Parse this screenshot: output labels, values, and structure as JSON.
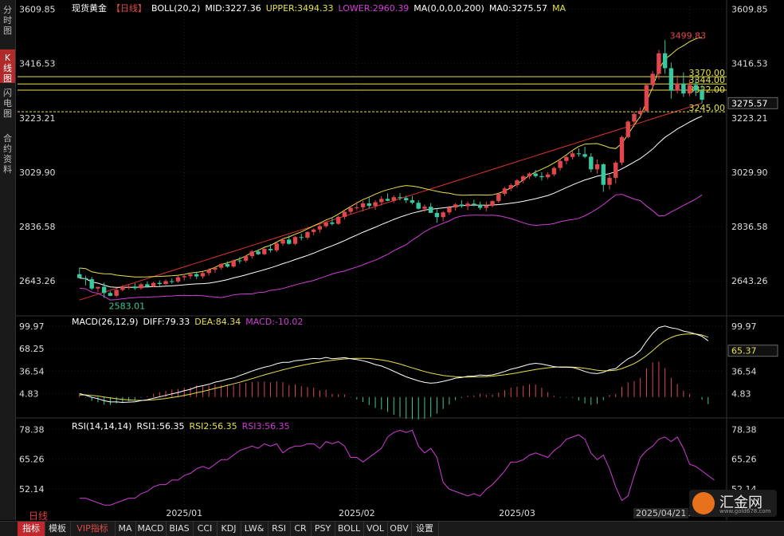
{
  "sidebar": {
    "tabs": [
      {
        "label": "分时图",
        "active": false
      },
      {
        "label": "K线图",
        "active": true
      },
      {
        "label": "闪电图",
        "active": false
      },
      {
        "label": "合约资料",
        "active": false
      }
    ]
  },
  "main_legend": {
    "symbol": "现货黄金",
    "period": "【日线】",
    "boll": "BOLL(20,2)",
    "mid": "MID:3227.36",
    "upper": "UPPER:3494.33",
    "lower": "LOWER:2960.39",
    "ma_params": "MA(0,0,0,0,200)",
    "ma0": "MA0:3275.57",
    "ma_tag": "MA"
  },
  "macd_legend": {
    "params": "MACD(26,12,9)",
    "diff": "DIFF:79.33",
    "dea": "DEA:84.34",
    "macd": "MACD:-10.02"
  },
  "rsi_legend": {
    "params": "RSI(14,14,14)",
    "rsi1": "RSI1:56.35",
    "rsi2": "RSI2:56.35",
    "rsi3": "RSI3:56.35"
  },
  "annotations": {
    "high_label": "3499.83",
    "low_label": "2583.01",
    "price_tag": "3275.57",
    "macd_tag": "65.37"
  },
  "bottom": {
    "period_label": "日线",
    "date_badge": "2025/04/21",
    "brand_name": "汇金网",
    "brand_url": "www.gold678.com",
    "toolbar": [
      "指标",
      "模板",
      "VIP指标",
      "MA",
      "MACD",
      "BIAS",
      "CCI",
      "KDJ",
      "LW&",
      "RSI",
      "CR",
      "PSY",
      "BOLL",
      "VOL",
      "OBV",
      "设置"
    ],
    "toolbar_active": "指标"
  },
  "colors": {
    "up": "#e0474c",
    "down": "#39c8a0",
    "boll_upper": "#e8e24a",
    "boll_mid": "#ffffff",
    "boll_lower": "#d23cd8",
    "ma200": "#e0332d",
    "rsi": "#d23cd8",
    "grid": "#222222",
    "hline": "#e8e24a"
  },
  "chart_data": [
    {
      "type": "candlestick",
      "title": "现货黄金【日线】",
      "y_ticks": [
        "3609.85",
        "3416.53",
        "3223.21",
        "3029.90",
        "2836.58",
        "2643.26"
      ],
      "ylim": [
        2530,
        3620
      ],
      "x_ticks": [
        "2025/01",
        "2025/02",
        "2025/03",
        "2025/04"
      ],
      "x_tick_index": [
        17,
        45,
        71,
        99
      ],
      "horizontal_lines": [
        "3370.00",
        "3344.00",
        "3322.00",
        "3245.00"
      ],
      "horizontal_labels": [
        "3370.00",
        "3344.00",
        "3322.00",
        "3245.00"
      ],
      "extremes": {
        "high": 3499.83,
        "low": 2583.01
      },
      "candles": [
        [
          2667,
          2690,
          2662,
          2653
        ],
        [
          2653,
          2661,
          2627,
          2649
        ],
        [
          2649,
          2657,
          2611,
          2616
        ],
        [
          2616,
          2621,
          2604,
          2622
        ],
        [
          2622,
          2637,
          2583,
          2600
        ],
        [
          2600,
          2606,
          2589,
          2590
        ],
        [
          2590,
          2618,
          2585,
          2611
        ],
        [
          2611,
          2628,
          2606,
          2621
        ],
        [
          2621,
          2630,
          2613,
          2623
        ],
        [
          2623,
          2635,
          2611,
          2617
        ],
        [
          2617,
          2636,
          2612,
          2631
        ],
        [
          2631,
          2641,
          2619,
          2623
        ],
        [
          2623,
          2640,
          2620,
          2636
        ],
        [
          2636,
          2645,
          2625,
          2632
        ],
        [
          2632,
          2648,
          2628,
          2642
        ],
        [
          2642,
          2652,
          2633,
          2641
        ],
        [
          2641,
          2661,
          2636,
          2656
        ],
        [
          2656,
          2668,
          2645,
          2660
        ],
        [
          2660,
          2672,
          2650,
          2667
        ],
        [
          2667,
          2676,
          2650,
          2659
        ],
        [
          2659,
          2676,
          2652,
          2671
        ],
        [
          2671,
          2688,
          2662,
          2683
        ],
        [
          2683,
          2693,
          2672,
          2690
        ],
        [
          2690,
          2705,
          2683,
          2703
        ],
        [
          2703,
          2713,
          2690,
          2694
        ],
        [
          2694,
          2720,
          2690,
          2716
        ],
        [
          2716,
          2728,
          2705,
          2715
        ],
        [
          2715,
          2735,
          2709,
          2731
        ],
        [
          2731,
          2753,
          2722,
          2748
        ],
        [
          2748,
          2756,
          2735,
          2738
        ],
        [
          2738,
          2762,
          2735,
          2757
        ],
        [
          2757,
          2774,
          2744,
          2752
        ],
        [
          2752,
          2780,
          2745,
          2776
        ],
        [
          2776,
          2795,
          2768,
          2790
        ],
        [
          2790,
          2805,
          2772,
          2775
        ],
        [
          2775,
          2803,
          2770,
          2799
        ],
        [
          2799,
          2811,
          2787,
          2797
        ],
        [
          2797,
          2820,
          2790,
          2817
        ],
        [
          2817,
          2830,
          2805,
          2826
        ],
        [
          2826,
          2843,
          2815,
          2838
        ],
        [
          2838,
          2855,
          2832,
          2851
        ],
        [
          2851,
          2870,
          2840,
          2846
        ],
        [
          2846,
          2875,
          2843,
          2871
        ],
        [
          2871,
          2895,
          2862,
          2889
        ],
        [
          2889,
          2910,
          2880,
          2903
        ],
        [
          2903,
          2925,
          2895,
          2905
        ],
        [
          2905,
          2928,
          2891,
          2919
        ],
        [
          2919,
          2942,
          2902,
          2910
        ],
        [
          2910,
          2930,
          2896,
          2923
        ],
        [
          2923,
          2945,
          2911,
          2935
        ],
        [
          2935,
          2955,
          2927,
          2928
        ],
        [
          2928,
          2948,
          2920,
          2941
        ],
        [
          2941,
          2955,
          2930,
          2938
        ],
        [
          2938,
          2946,
          2920,
          2930
        ],
        [
          2930,
          2945,
          2915,
          2921
        ],
        [
          2921,
          2930,
          2897,
          2900
        ],
        [
          2900,
          2915,
          2888,
          2907
        ],
        [
          2907,
          2920,
          2895,
          2885
        ],
        [
          2885,
          2902,
          2850,
          2870
        ],
        [
          2870,
          2892,
          2855,
          2887
        ],
        [
          2887,
          2910,
          2878,
          2904
        ],
        [
          2904,
          2920,
          2893,
          2915
        ],
        [
          2915,
          2930,
          2903,
          2909
        ],
        [
          2909,
          2925,
          2895,
          2918
        ],
        [
          2918,
          2932,
          2908,
          2914
        ],
        [
          2914,
          2925,
          2896,
          2903
        ],
        [
          2903,
          2925,
          2890,
          2910
        ],
        [
          2910,
          2930,
          2905,
          2927
        ],
        [
          2927,
          2958,
          2920,
          2953
        ],
        [
          2953,
          2977,
          2945,
          2972
        ],
        [
          2972,
          2990,
          2963,
          2984
        ],
        [
          2984,
          3005,
          2975,
          3001
        ],
        [
          3001,
          3020,
          2990,
          3015
        ],
        [
          3015,
          3030,
          3005,
          3025
        ],
        [
          3025,
          3038,
          3010,
          3016
        ],
        [
          3016,
          3030,
          3000,
          3012
        ],
        [
          3012,
          3030,
          3005,
          3022
        ],
        [
          3022,
          3050,
          3015,
          3045
        ],
        [
          3045,
          3075,
          3035,
          3070
        ],
        [
          3070,
          3090,
          3058,
          3084
        ],
        [
          3084,
          3108,
          3075,
          3097
        ],
        [
          3097,
          3115,
          3085,
          3094
        ],
        [
          3094,
          3120,
          3080,
          3085
        ],
        [
          3085,
          3098,
          3030,
          3040
        ],
        [
          3040,
          3075,
          3025,
          3058
        ],
        [
          3058,
          3062,
          2960,
          2985
        ],
        [
          2985,
          3022,
          2968,
          3010
        ],
        [
          3010,
          3070,
          2990,
          3064
        ],
        [
          3064,
          3160,
          3055,
          3155
        ],
        [
          3155,
          3215,
          3150,
          3210
        ],
        [
          3210,
          3245,
          3192,
          3237
        ],
        [
          3237,
          3260,
          3222,
          3248
        ],
        [
          3248,
          3345,
          3245,
          3340
        ],
        [
          3340,
          3390,
          3320,
          3380
        ],
        [
          3380,
          3465,
          3360,
          3453
        ],
        [
          3453,
          3500,
          3380,
          3400
        ],
        [
          3400,
          3420,
          3292,
          3320
        ],
        [
          3320,
          3375,
          3310,
          3345
        ],
        [
          3345,
          3385,
          3298,
          3310
        ],
        [
          3310,
          3360,
          3300,
          3340
        ],
        [
          3340,
          3365,
          3301,
          3320
        ],
        [
          3320,
          3340,
          3275,
          3288
        ]
      ]
    },
    {
      "type": "line",
      "title": "MACD(26,12,9)",
      "y_ticks": [
        "99.97",
        "68.25",
        "36.54",
        "4.83"
      ],
      "ylim": [
        -25,
        110
      ],
      "series": [
        {
          "name": "DIFF",
          "values": [
            4.8,
            2.6,
            -0.4,
            -2.3,
            -5.2,
            -6.9,
            -6.9,
            -7.6,
            -7.1,
            -6.8,
            -5.1,
            -3.9,
            -1.6,
            0.3,
            2.3,
            4.6,
            6.4,
            8.9,
            10.9,
            14.3,
            16.1,
            18.0,
            21.0,
            22.7,
            25.2,
            27.0,
            30.4,
            33.4,
            36.7,
            39.6,
            42.1,
            44.0,
            47.0,
            48.9,
            49.0,
            51.3,
            52.1,
            53.3,
            54.4,
            53.9,
            55.9,
            54.0,
            54.8,
            55.6,
            54.0,
            52.9,
            51.2,
            48.8,
            45.8,
            43.7,
            40.4,
            36.3,
            32.4,
            28.6,
            25.6,
            22.8,
            20.7,
            19.6,
            20.3,
            22.1,
            24.1,
            26.6,
            27.7,
            29.2,
            29.6,
            31.1,
            30.4,
            31.2,
            33.5,
            36.1,
            39.2,
            41.3,
            43.7,
            46.3,
            47.6,
            46.6,
            44.8,
            42.9,
            42.1,
            42.1,
            41.7,
            39.2,
            36.1,
            33.7,
            33.0,
            34.8,
            38.6,
            40.1,
            47.4,
            53.9,
            58.4,
            65.8,
            78.6,
            89.8,
            98.1,
            100.1,
            97.6,
            96.2,
            93.0,
            91.3,
            88.7,
            85.7,
            79.3
          ]
        },
        {
          "name": "DEA",
          "values": [
            3.0,
            3.0,
            2.3,
            1.4,
            0.1,
            -1.3,
            -2.4,
            -3.4,
            -4.1,
            -4.6,
            -4.7,
            -4.5,
            -3.9,
            -3.1,
            -2.0,
            -0.7,
            0.7,
            2.3,
            3.9,
            6.0,
            8.0,
            10.0,
            12.2,
            14.3,
            16.5,
            18.6,
            20.9,
            23.4,
            26.0,
            28.7,
            31.2,
            33.6,
            36.0,
            38.4,
            40.5,
            42.6,
            44.5,
            46.2,
            47.8,
            49.2,
            50.8,
            51.8,
            52.8,
            53.7,
            54.3,
            54.6,
            54.7,
            54.4,
            53.5,
            52.4,
            50.9,
            48.8,
            46.5,
            43.9,
            41.2,
            38.6,
            36.0,
            33.8,
            32.0,
            30.5,
            29.4,
            28.7,
            28.3,
            28.2,
            28.4,
            28.6,
            28.9,
            29.5,
            30.4,
            31.4,
            32.6,
            34.1,
            35.7,
            37.3,
            38.8,
            40.1,
            41.3,
            42.0,
            42.5,
            42.5,
            42.2,
            41.6,
            40.6,
            39.2,
            37.8,
            37.0,
            37.1,
            37.9,
            40.1,
            43.5,
            47.2,
            52.3,
            58.3,
            65.4,
            73.2,
            79.7,
            84.0,
            87.0,
            88.5,
            89.1,
            88.8,
            87.5,
            84.3
          ]
        },
        {
          "name": "MACD",
          "values": [
            3.6,
            -0.8,
            -5.4,
            -7.4,
            -10.6,
            -11.2,
            -9.0,
            -8.4,
            -6.0,
            -4.4,
            -0.8,
            1.2,
            4.6,
            6.8,
            8.6,
            10.6,
            11.4,
            13.2,
            14.0,
            16.6,
            16.2,
            16.0,
            17.6,
            16.8,
            17.4,
            16.8,
            19.0,
            20.0,
            21.4,
            21.8,
            21.8,
            20.8,
            22.0,
            21.0,
            17.0,
            17.4,
            15.2,
            14.2,
            13.2,
            9.4,
            10.2,
            4.4,
            4.0,
            3.8,
            -0.6,
            -3.4,
            -7.0,
            -11.2,
            -15.4,
            -17.4,
            -21.0,
            -25.0,
            -28.2,
            -30.6,
            -31.2,
            -31.6,
            -30.6,
            -28.4,
            -23.4,
            -16.8,
            -10.6,
            -4.2,
            -1.2,
            2.0,
            2.4,
            5.0,
            3.0,
            3.4,
            6.2,
            9.4,
            13.2,
            14.4,
            16.0,
            18.0,
            17.6,
            13.0,
            7.0,
            1.8,
            -0.8,
            -0.8,
            -1.0,
            -4.8,
            -9.0,
            -11.0,
            -9.6,
            -4.4,
            3.0,
            4.4,
            14.6,
            20.8,
            22.4,
            27.0,
            40.6,
            48.8,
            49.8,
            40.8,
            27.2,
            18.4,
            9.0,
            4.4,
            -0.2,
            -3.6,
            -10.0
          ]
        }
      ]
    },
    {
      "type": "line",
      "title": "RSI(14,14,14)",
      "y_ticks": [
        "78.38",
        "65.26",
        "52.14"
      ],
      "ylim": [
        44,
        82
      ],
      "series": [
        {
          "name": "RSI1",
          "values": [
            48,
            48,
            47,
            46,
            45,
            45,
            46,
            47,
            48,
            48,
            50,
            51,
            53,
            54,
            54,
            56,
            56,
            58,
            59,
            61,
            62,
            61,
            63,
            65,
            65,
            67,
            69,
            70,
            71,
            70,
            72,
            71,
            72,
            68,
            70,
            71,
            71,
            72,
            72,
            70,
            73,
            72,
            73,
            71,
            66,
            66,
            64,
            66,
            68,
            70,
            75,
            77,
            78,
            77,
            78,
            71,
            68,
            70,
            66,
            55,
            52,
            51,
            50,
            49,
            50,
            49,
            52,
            54,
            57,
            60,
            64,
            64,
            65,
            67,
            68,
            67,
            66,
            69,
            71,
            74,
            75,
            76,
            74,
            68,
            65,
            67,
            61,
            53,
            47,
            49,
            58,
            66,
            69,
            71,
            74,
            75,
            73,
            75,
            70,
            63,
            62,
            60,
            58,
            56
          ]
        }
      ]
    }
  ]
}
